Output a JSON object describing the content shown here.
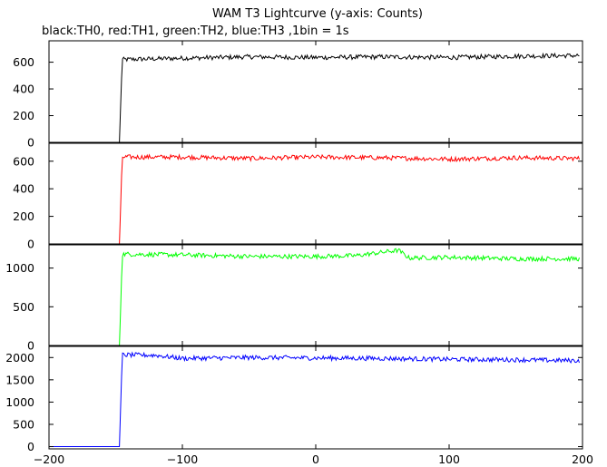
{
  "chart_data": {
    "type": "line",
    "title": "WAM T3 Lightcurve (y-axis: Counts)",
    "subtitle": "black:TH0, red:TH1, green:TH2, blue:TH3 ,1bin = 1s",
    "xlabel": "",
    "ylabel": "",
    "xlim": [
      -200,
      200
    ],
    "x_ticks": [
      -200,
      -100,
      0,
      100,
      200
    ],
    "x_tick_labels": [
      "−200",
      "−100",
      "0",
      "100",
      "200"
    ],
    "grid": false,
    "panels": [
      {
        "name": "TH0",
        "color": "#000000",
        "ylim": [
          0,
          760
        ],
        "y_ticks": [
          0,
          200,
          400,
          600
        ],
        "y_tick_labels": [
          "0",
          "200",
          "400",
          "600"
        ],
        "points": [
          [
            -200,
            0
          ],
          [
            -147,
            0
          ],
          [
            -146,
            400
          ],
          [
            -145,
            620
          ],
          [
            -100,
            630
          ],
          [
            -50,
            640
          ],
          [
            0,
            635
          ],
          [
            50,
            640
          ],
          [
            100,
            635
          ],
          [
            150,
            645
          ],
          [
            198,
            650
          ]
        ]
      },
      {
        "name": "TH1",
        "color": "#ff0000",
        "ylim": [
          0,
          730
        ],
        "y_ticks": [
          0,
          200,
          400,
          600
        ],
        "y_tick_labels": [
          "0",
          "200",
          "400",
          "600"
        ],
        "points": [
          [
            -200,
            0
          ],
          [
            -147,
            0
          ],
          [
            -146,
            380
          ],
          [
            -145,
            630
          ],
          [
            -100,
            630
          ],
          [
            -50,
            620
          ],
          [
            0,
            630
          ],
          [
            50,
            625
          ],
          [
            100,
            615
          ],
          [
            150,
            625
          ],
          [
            198,
            620
          ]
        ]
      },
      {
        "name": "TH2",
        "color": "#00ff00",
        "ylim": [
          0,
          1300
        ],
        "y_ticks": [
          0,
          500,
          1000
        ],
        "y_tick_labels": [
          "0",
          "500",
          "1000"
        ],
        "points": [
          [
            -200,
            0
          ],
          [
            -147,
            0
          ],
          [
            -146,
            720
          ],
          [
            -145,
            1180
          ],
          [
            -100,
            1170
          ],
          [
            -50,
            1150
          ],
          [
            0,
            1150
          ],
          [
            30,
            1160
          ],
          [
            62,
            1230
          ],
          [
            70,
            1130
          ],
          [
            100,
            1140
          ],
          [
            150,
            1120
          ],
          [
            198,
            1120
          ]
        ]
      },
      {
        "name": "TH3",
        "color": "#0000ff",
        "ylim": [
          -50,
          2250
        ],
        "y_ticks": [
          0,
          500,
          1000,
          1500,
          2000
        ],
        "y_tick_labels": [
          "0",
          "500",
          "1000",
          "1500",
          "2000"
        ],
        "points": [
          [
            -200,
            0
          ],
          [
            -147,
            0
          ],
          [
            -146,
            1250
          ],
          [
            -145,
            2060
          ],
          [
            -120,
            2050
          ],
          [
            -100,
            1980
          ],
          [
            -50,
            2000
          ],
          [
            0,
            1990
          ],
          [
            50,
            1980
          ],
          [
            100,
            1960
          ],
          [
            150,
            1950
          ],
          [
            198,
            1930
          ]
        ]
      }
    ]
  }
}
